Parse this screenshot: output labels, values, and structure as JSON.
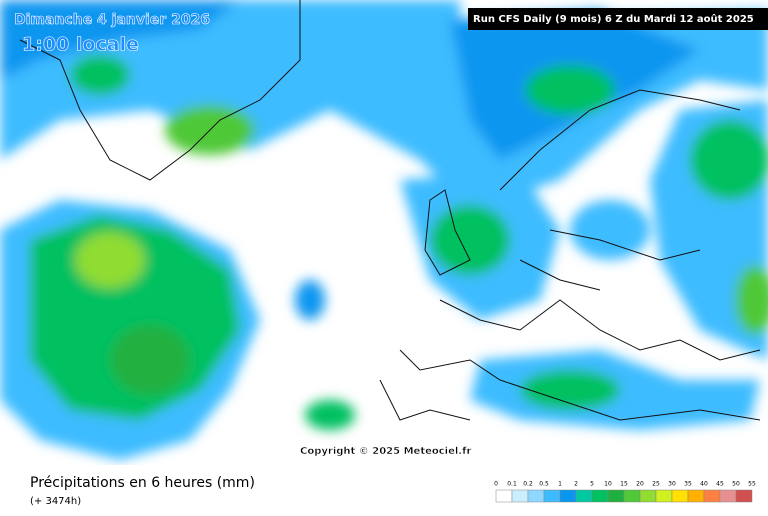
{
  "header": {
    "date": "Dimanche 4 janvier 2026",
    "time": "1:00 locale",
    "run": "Run CFS Daily (9 mois) 6 Z du Mardi 12 août 2025"
  },
  "copyright": "Copyright © 2025 Meteociel.fr",
  "footer": {
    "title": "Précipitations en 6 heures (mm)",
    "lead": "(+ 3474h)"
  },
  "legend": {
    "labels": [
      0,
      0.1,
      0.2,
      0.5,
      1,
      2,
      5,
      10,
      15,
      20,
      25,
      30,
      35,
      40,
      45,
      50,
      55
    ],
    "colors": [
      "#ffffff",
      "#c8eeff",
      "#8ed8ff",
      "#3cbcff",
      "#0a96f0",
      "#00c8a0",
      "#00c060",
      "#20b040",
      "#50c838",
      "#90dc30",
      "#d0f020",
      "#ffe000",
      "#ffb000",
      "#ff8040",
      "#e89090",
      "#d05050"
    ]
  }
}
